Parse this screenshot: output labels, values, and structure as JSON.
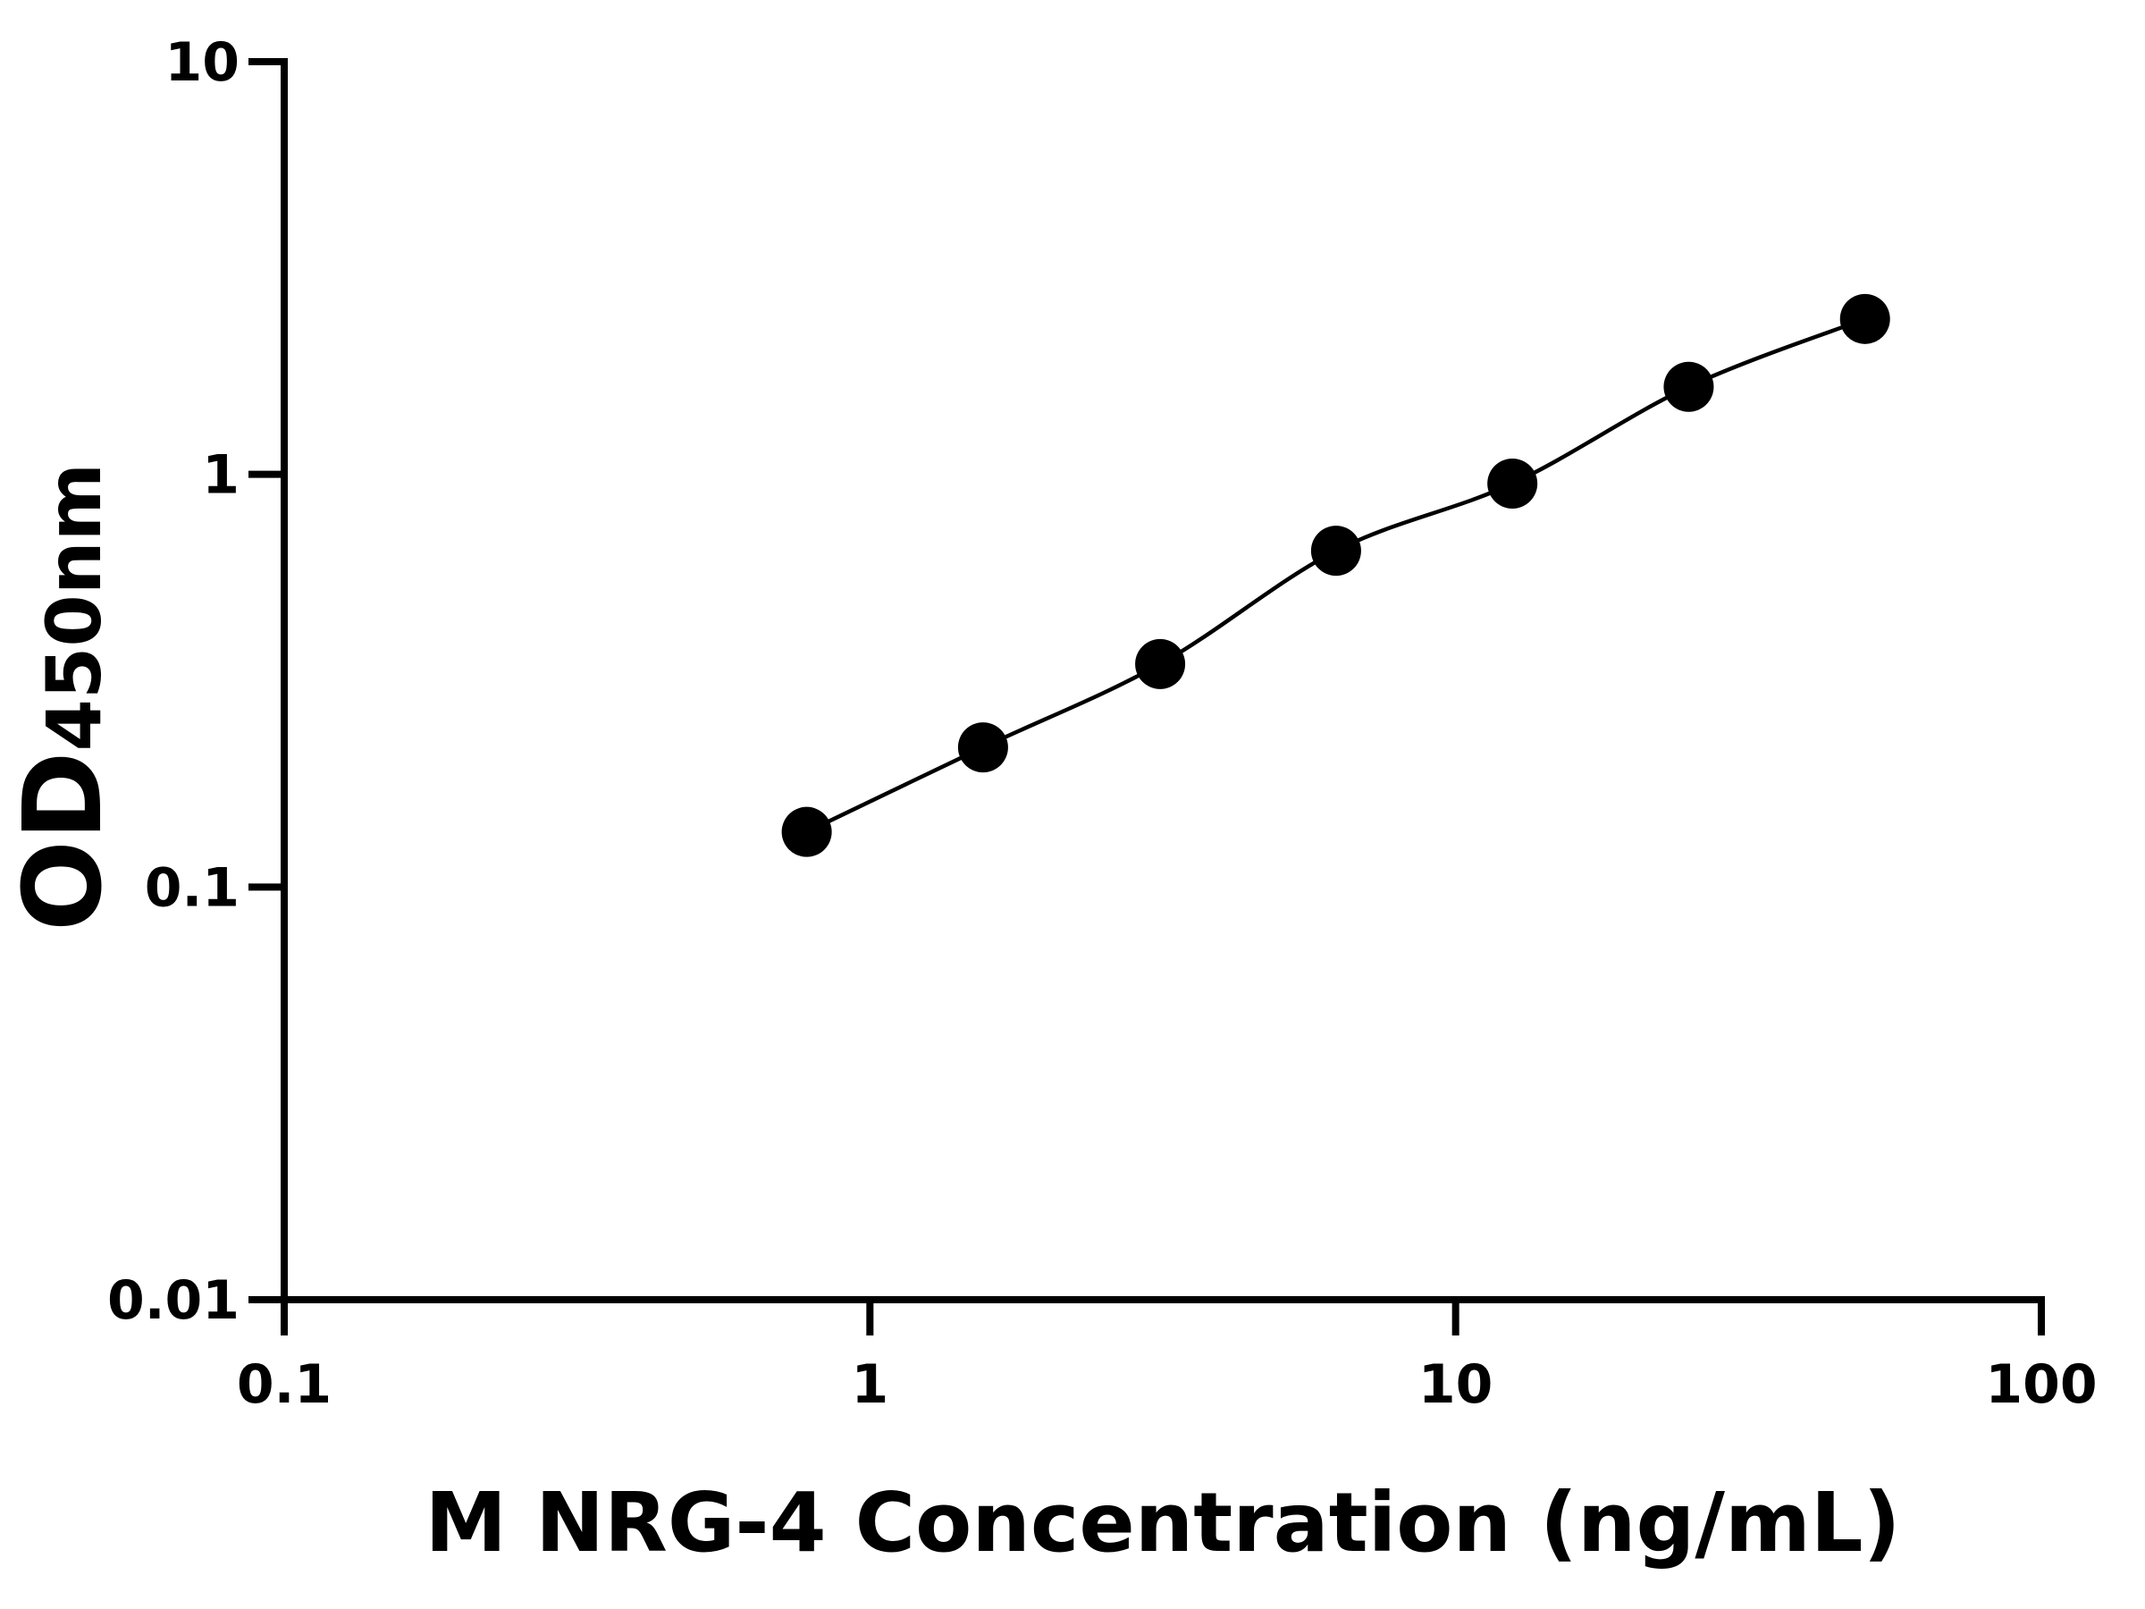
{
  "chart_data": {
    "type": "scatter",
    "xlabel": "M NRG-4 Concentration (ng/mL)",
    "ylabel": {
      "main": "OD",
      "subscript": "450nm"
    },
    "x": [
      0.78,
      1.56,
      3.13,
      6.25,
      12.5,
      25,
      50
    ],
    "values": [
      0.136,
      0.218,
      0.347,
      0.653,
      0.95,
      1.63,
      2.38
    ],
    "color": "#000000",
    "fit_curve": true,
    "xscale": "log",
    "yscale": "log",
    "xlim": [
      0.1,
      100
    ],
    "ylim": [
      0.01,
      10
    ],
    "xticks": [
      0.1,
      1,
      10,
      100
    ],
    "yticks": [
      0.01,
      0.1,
      1,
      10
    ],
    "grid": false
  }
}
